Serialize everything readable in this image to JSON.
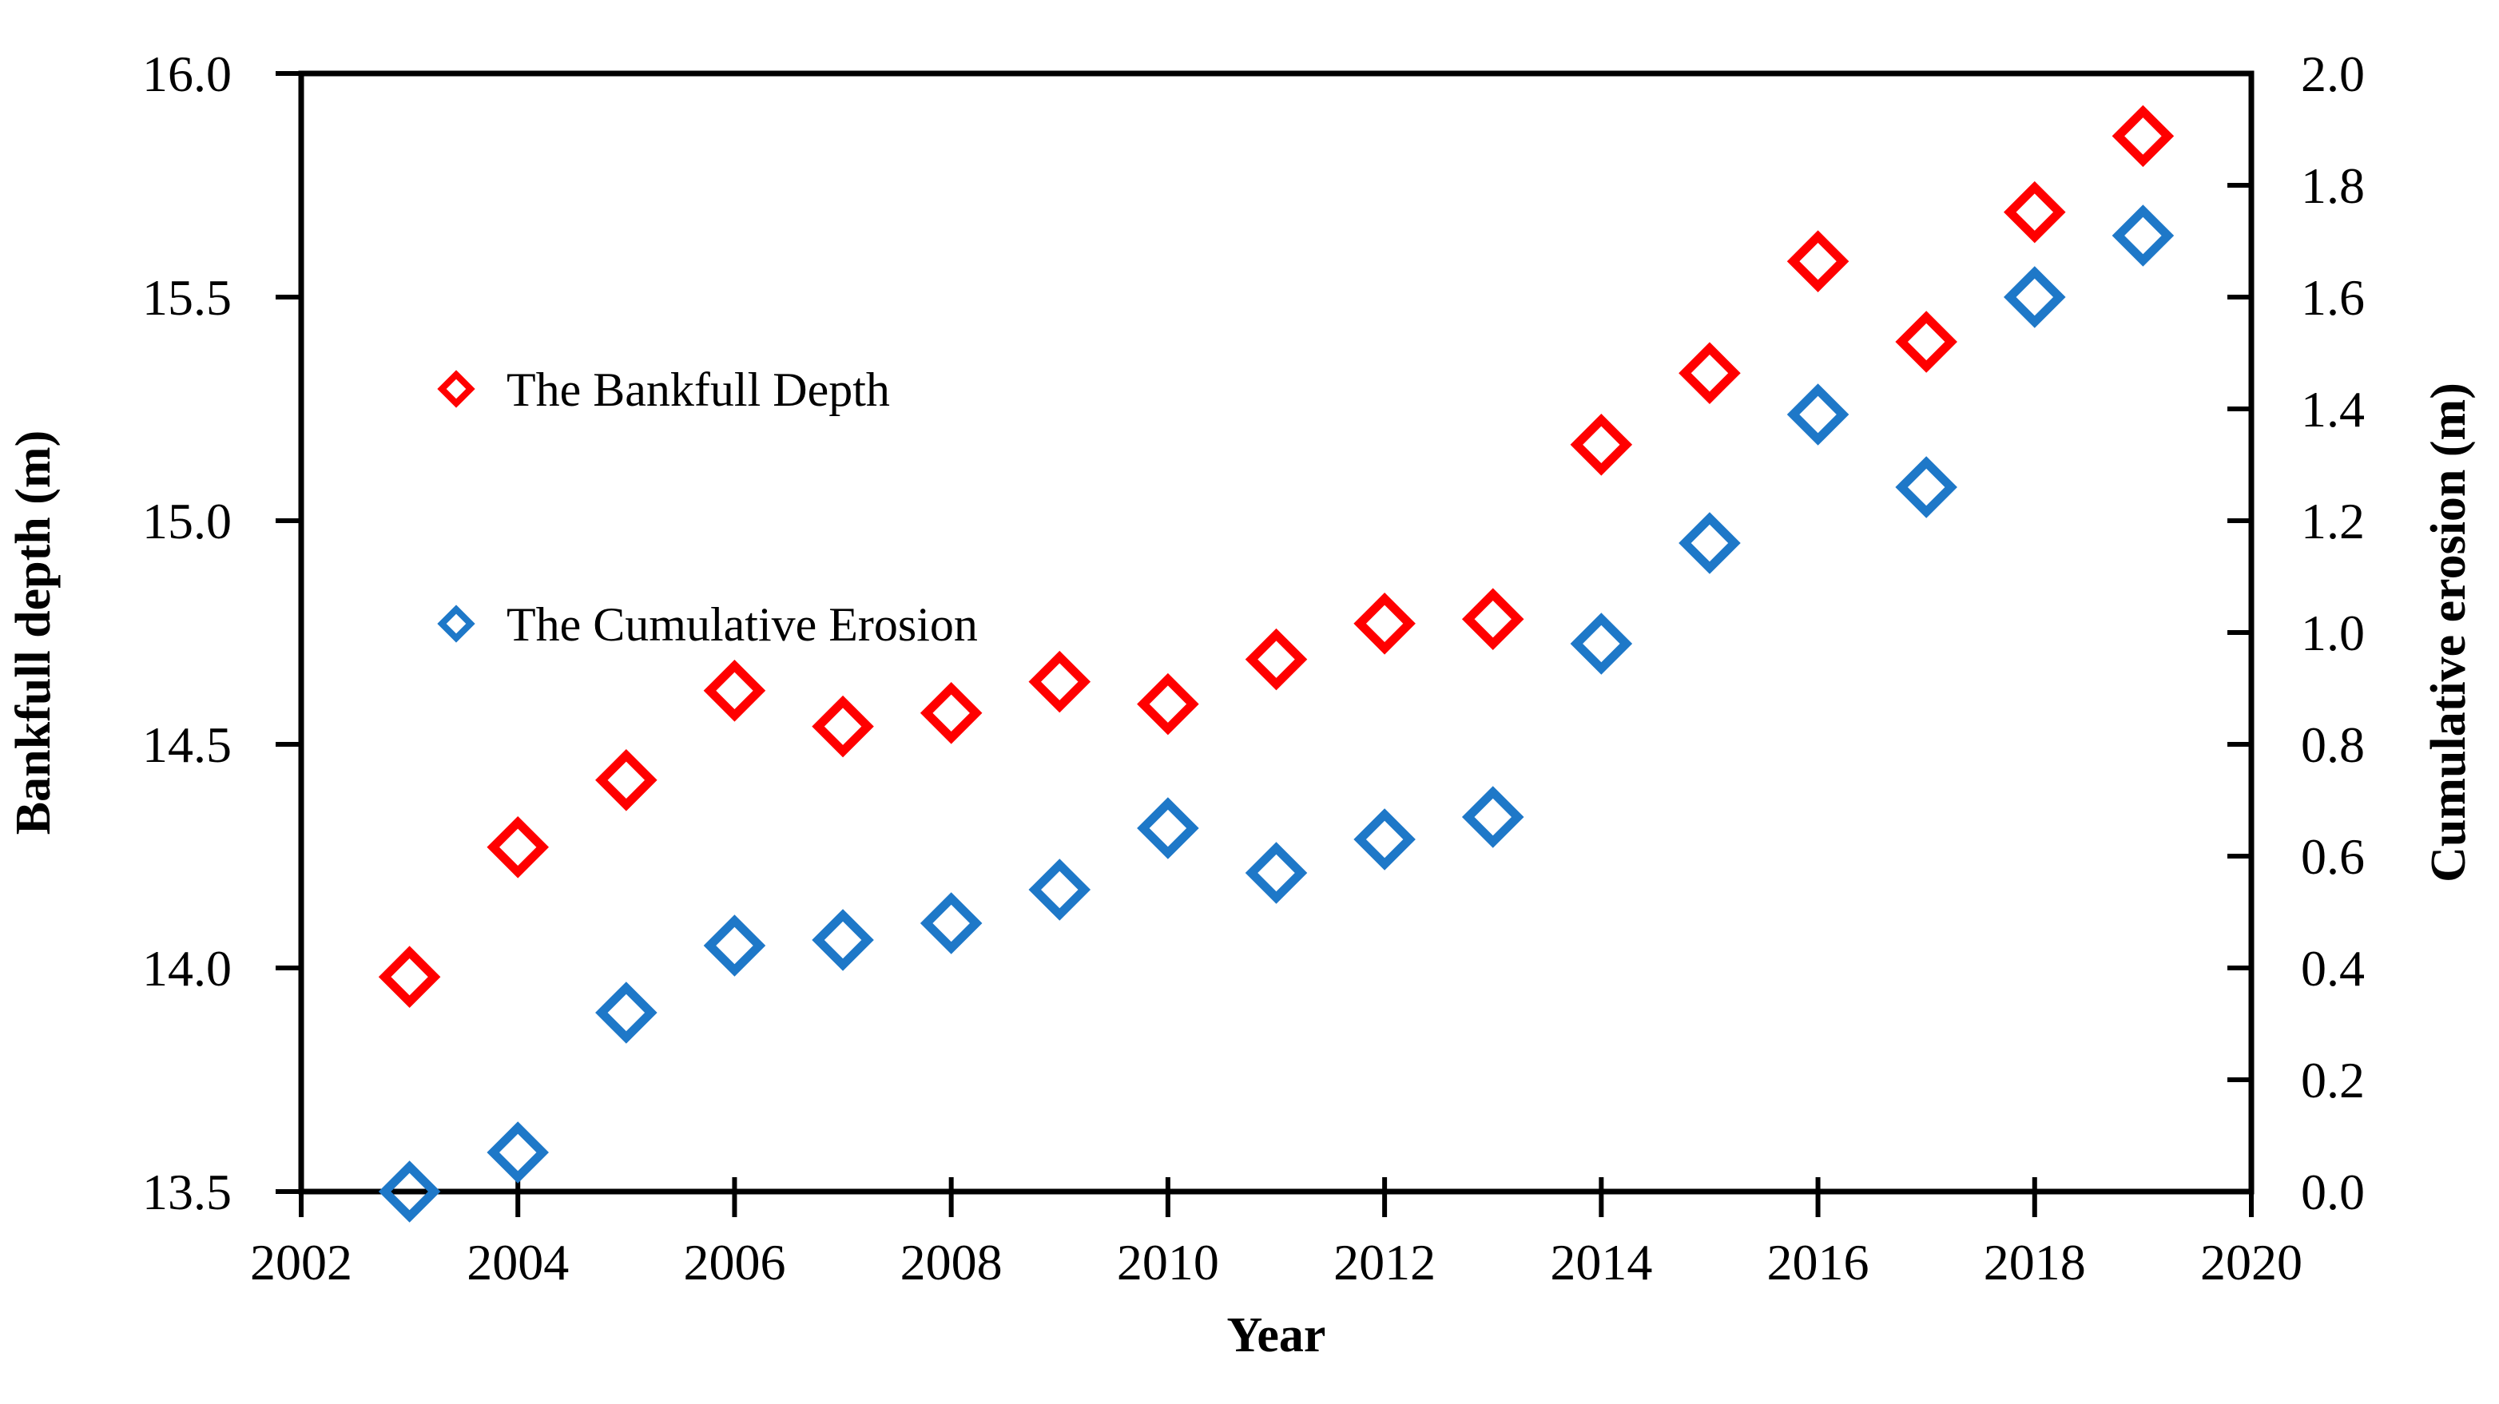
{
  "figure": {
    "background": "#FFFFFF",
    "axis_color": "#000000"
  },
  "legend": {
    "position": "inside-upper-left",
    "items": [
      {
        "label": "The Bankfull Depth",
        "marker": "open-diamond",
        "color": "#FF0000"
      },
      {
        "label": "The Cumulative Erosion",
        "marker": "open-diamond",
        "color": "#1E78C8"
      }
    ]
  },
  "chart_data": {
    "type": "scatter",
    "title": "",
    "grid": false,
    "legend_position": "inside-upper-left",
    "marker": "open-diamond",
    "x": [
      2003,
      2004,
      2005,
      2006,
      2007,
      2008,
      2009,
      2010,
      2011,
      2012,
      2013,
      2014,
      2015,
      2016,
      2017,
      2018,
      2019
    ],
    "series": [
      {
        "name": "The Bankfull Depth",
        "axis": "left",
        "color": "#FF0000",
        "values": [
          13.98,
          14.27,
          14.42,
          14.62,
          14.54,
          14.57,
          14.64,
          14.59,
          14.69,
          14.77,
          14.78,
          15.17,
          15.33,
          15.58,
          15.4,
          15.69,
          15.86
        ]
      },
      {
        "name": "The Cumulative Erosion",
        "axis": "right",
        "color": "#1E78C8",
        "values": [
          0.0,
          0.07,
          0.32,
          0.44,
          0.45,
          0.48,
          0.54,
          0.65,
          0.57,
          0.63,
          0.67,
          0.98,
          1.16,
          1.39,
          1.26,
          1.6,
          1.71
        ]
      }
    ],
    "axes": {
      "x": {
        "label": "Year",
        "min": 2002,
        "max": 2020,
        "ticks": [
          2002,
          2004,
          2006,
          2008,
          2010,
          2012,
          2014,
          2016,
          2018,
          2020
        ]
      },
      "left": {
        "label": "Bankfull depth (m)",
        "min": 13.5,
        "max": 16.0,
        "ticks": [
          13.5,
          14.0,
          14.5,
          15.0,
          15.5,
          16.0
        ]
      },
      "right": {
        "label": "Cumulative erosion (m)",
        "min": 0.0,
        "max": 2.0,
        "ticks": [
          0.0,
          0.2,
          0.4,
          0.6,
          0.8,
          1.0,
          1.2,
          1.4,
          1.6,
          1.8,
          2.0
        ]
      }
    }
  }
}
